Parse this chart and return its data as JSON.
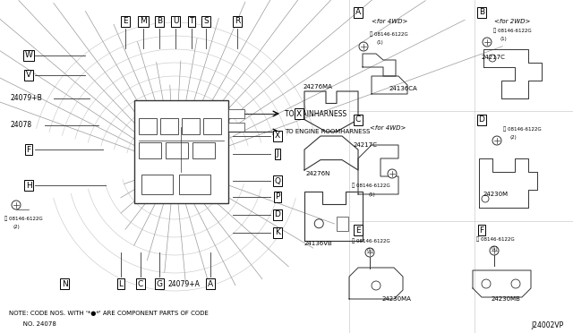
{
  "bg_color": "#ffffff",
  "line_color": "#333333",
  "fig_w": 6.4,
  "fig_h": 3.72,
  "dpi": 100,
  "note1": "NOTE: CODE NOS. WITH '*●*' ARE COMPONENT PARTS OF CODE",
  "note2": "       NO. 24078",
  "watermark": "J24002VP"
}
